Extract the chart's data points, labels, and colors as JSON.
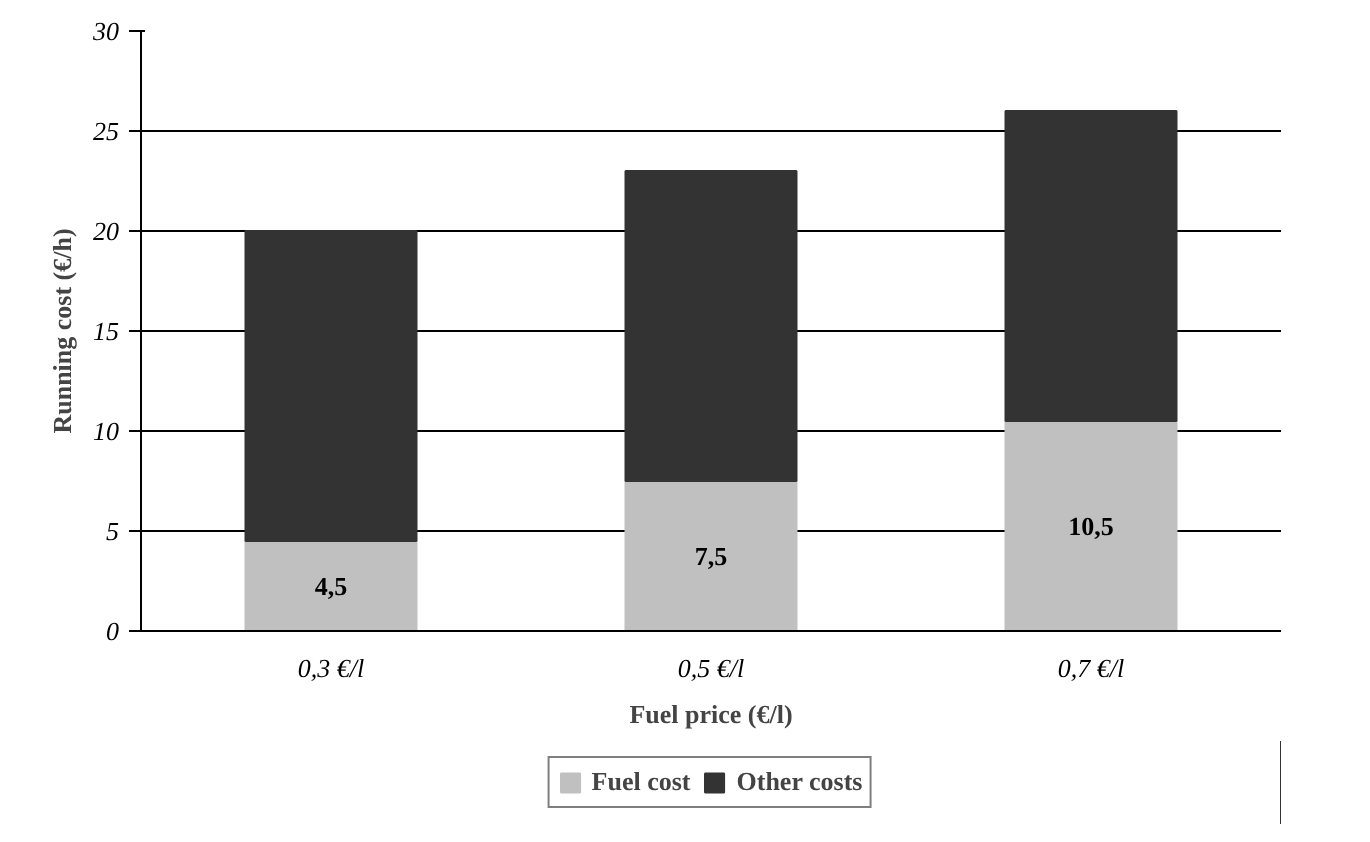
{
  "chart_data": {
    "type": "bar",
    "stacked": true,
    "xlabel": "Fuel price (€/l)",
    "ylabel": "Running cost (€/h)",
    "categories": [
      "0,3 €/l",
      "0,5 €/l",
      "0,7 €/l"
    ],
    "series": [
      {
        "name": "Fuel cost",
        "color": "#c0c0c0",
        "values": [
          4.5,
          7.5,
          10.5
        ],
        "value_labels": [
          "4,5",
          "7,5",
          "10,5"
        ]
      },
      {
        "name": "Other costs",
        "color": "#333333",
        "values": [
          15.5,
          15.5,
          15.5
        ]
      }
    ],
    "ylim": [
      0,
      30
    ],
    "yticks": [
      0,
      5,
      10,
      15,
      20,
      25,
      30
    ],
    "grid": "y",
    "legend": "bottom"
  }
}
